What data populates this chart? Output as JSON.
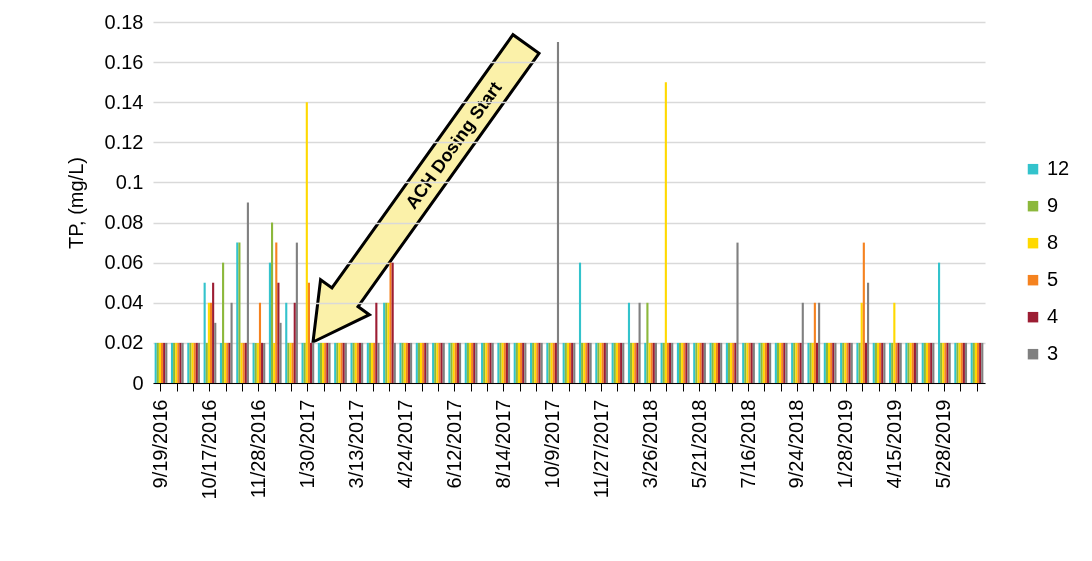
{
  "chart_data": {
    "type": "bar",
    "ylabel": "TP, (mg/L)",
    "categories": [
      "9/19/2016",
      null,
      null,
      "10/17/2016",
      null,
      null,
      "11/28/2016",
      null,
      null,
      "1/30/2017",
      null,
      null,
      "3/13/2017",
      null,
      null,
      "4/24/2017",
      null,
      null,
      "6/12/2017",
      null,
      null,
      "8/14/2017",
      null,
      null,
      "10/9/2017",
      null,
      null,
      "11/27/2017",
      null,
      null,
      "3/26/2018",
      null,
      null,
      "5/21/2018",
      null,
      null,
      "7/16/2018",
      null,
      null,
      "9/24/2018",
      null,
      null,
      "1/28/2019",
      null,
      null,
      "4/15/2019",
      null,
      null,
      "5/28/2019",
      null,
      null
    ],
    "series": [
      {
        "name": "12",
        "color": "#33c3cc",
        "values": [
          0.02,
          0.02,
          0.02,
          0.05,
          0.02,
          0.07,
          0.02,
          0.06,
          0.04,
          0.02,
          0.02,
          0.02,
          0.02,
          0.02,
          0.04,
          0.02,
          0.02,
          0.02,
          0.02,
          0.02,
          0.02,
          0.02,
          0.02,
          0.02,
          0.02,
          0.02,
          0.06,
          0.02,
          0.02,
          0.04,
          0.02,
          0.02,
          0.02,
          0.02,
          0.02,
          0.02,
          0.02,
          0.02,
          0.02,
          0.02,
          0.02,
          0.02,
          0.02,
          0.02,
          0.02,
          0.02,
          0.02,
          0.02,
          0.06,
          0.02,
          0.02
        ]
      },
      {
        "name": "9",
        "color": "#8cb83c",
        "values": [
          0.02,
          0.02,
          0.02,
          0.02,
          0.06,
          0.07,
          0.02,
          0.08,
          0.02,
          0.02,
          0.02,
          0.02,
          0.02,
          0.02,
          0.04,
          0.02,
          0.02,
          0.02,
          0.02,
          0.02,
          0.02,
          0.02,
          0.02,
          0.02,
          0.02,
          0.02,
          0.02,
          0.02,
          0.02,
          0.02,
          0.04,
          0.02,
          0.02,
          0.02,
          0.02,
          0.02,
          0.02,
          0.02,
          0.02,
          0.02,
          0.02,
          0.02,
          0.02,
          0.02,
          0.02,
          0.02,
          0.02,
          0.02,
          0.02,
          0.02,
          0.02
        ]
      },
      {
        "name": "8",
        "color": "#ffd900",
        "values": [
          0.02,
          0.02,
          0.02,
          0.04,
          0.02,
          0.02,
          0.02,
          0.02,
          0.02,
          0.14,
          0.02,
          0.02,
          0.02,
          0.02,
          0.04,
          0.02,
          0.02,
          0.02,
          0.02,
          0.02,
          0.02,
          0.02,
          0.02,
          0.02,
          0.02,
          0.02,
          0.02,
          0.02,
          0.02,
          0.02,
          0.02,
          0.15,
          0.02,
          0.02,
          0.02,
          0.02,
          0.02,
          0.02,
          0.02,
          0.02,
          0.02,
          0.02,
          0.02,
          0.04,
          0.02,
          0.04,
          0.02,
          0.02,
          0.02,
          0.02,
          0.02
        ]
      },
      {
        "name": "5",
        "color": "#f5821f",
        "values": [
          0.02,
          0.02,
          0.02,
          0.04,
          0.02,
          0.02,
          0.04,
          0.07,
          0.02,
          0.05,
          0.02,
          0.02,
          0.02,
          0.02,
          0.06,
          0.02,
          0.02,
          0.02,
          0.02,
          0.02,
          0.02,
          0.02,
          0.02,
          0.02,
          0.02,
          0.02,
          0.02,
          0.02,
          0.02,
          0.02,
          0.02,
          0.02,
          0.02,
          0.02,
          0.02,
          0.02,
          0.02,
          0.02,
          0.02,
          0.02,
          0.04,
          0.02,
          0.02,
          0.07,
          0.02,
          0.02,
          0.02,
          0.02,
          0.02,
          0.02,
          0.02
        ]
      },
      {
        "name": "4",
        "color": "#9c1d33",
        "values": [
          0.02,
          0.02,
          0.02,
          0.05,
          0.02,
          0.02,
          0.02,
          0.05,
          0.04,
          0.02,
          0.02,
          0.02,
          0.02,
          0.04,
          0.06,
          0.02,
          0.02,
          0.02,
          0.02,
          0.02,
          0.02,
          0.02,
          0.02,
          0.02,
          0.02,
          0.02,
          0.02,
          0.02,
          0.02,
          0.02,
          0.02,
          0.02,
          0.02,
          0.02,
          0.02,
          0.02,
          0.02,
          0.02,
          0.02,
          0.02,
          0.02,
          0.02,
          0.02,
          0.02,
          0.02,
          0.02,
          0.02,
          0.02,
          0.02,
          0.02,
          0.02
        ]
      },
      {
        "name": "3",
        "color": "#808080",
        "values": [
          0.02,
          0.02,
          0.02,
          0.03,
          0.04,
          0.09,
          0.02,
          0.03,
          0.07,
          0.02,
          0.02,
          0.02,
          0.02,
          0.02,
          0.02,
          0.02,
          0.02,
          0.02,
          0.02,
          0.02,
          0.02,
          0.02,
          0.02,
          0.02,
          0.17,
          0.02,
          0.02,
          0.02,
          0.02,
          0.04,
          0.02,
          0.02,
          0.02,
          0.02,
          0.02,
          0.07,
          0.02,
          0.02,
          0.02,
          0.04,
          0.04,
          0.02,
          0.02,
          0.05,
          0.02,
          0.02,
          0.02,
          0.02,
          0.02,
          0.02,
          0.02
        ]
      }
    ],
    "ylim": [
      0,
      0.18
    ],
    "yticks": [
      0,
      0.02,
      0.04,
      0.06,
      0.08,
      0.1,
      0.12,
      0.14,
      0.16,
      0.18
    ],
    "grid": "y",
    "legend": "right",
    "annotations": [
      "ACH Dosing Start"
    ]
  }
}
